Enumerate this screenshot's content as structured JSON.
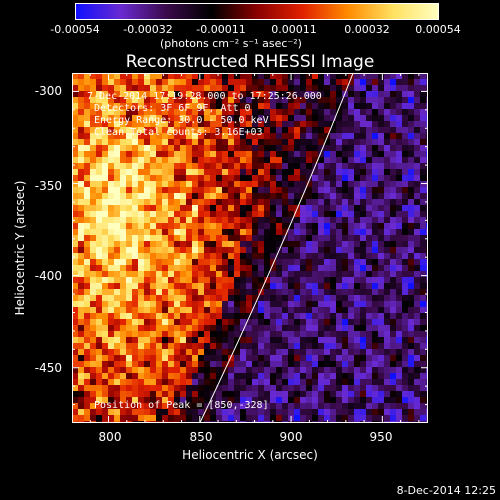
{
  "chart_data": {
    "type": "heatmap",
    "title": "Reconstructed RHESSI Image",
    "xlabel": "Heliocentric X (arcsec)",
    "ylabel": "Heliocentric Y (arcsec)",
    "xlim": [
      780,
      975
    ],
    "ylim": [
      -480,
      -290
    ],
    "x_ticks": [
      "800",
      "850",
      "900",
      "950"
    ],
    "y_ticks": [
      "-300",
      "-350",
      "-400",
      "-450"
    ],
    "colorbar": {
      "ticks": [
        "-0.00054",
        "-0.00032",
        "-0.00011",
        "0.00011",
        "0.00032",
        "0.00054"
      ],
      "units": "(photons cm⁻² s⁻¹ asec⁻²)",
      "range": [
        -0.00054,
        0.00054
      ],
      "colors": [
        "#1010ff",
        "#6a2ad0",
        "#3a0a4a",
        "#000000",
        "#8a0000",
        "#e02000",
        "#ff8a00",
        "#ffe060",
        "#ffffc0"
      ]
    },
    "annotations": {
      "time_range": "7-Dec-2014 17:19:28.000 to 17:25:26.000",
      "detectors": "Detectors: 3F 6F 9F, Att 0",
      "energy": "Energy Range: 30.0 - 50.0 keV",
      "clean": "Clean    Total counts: 3.16E+03",
      "peak": "Position of Peak = [850,-328]"
    },
    "limb_line": {
      "x": [
        850,
        934
      ],
      "y": [
        -480,
        -290
      ]
    },
    "bright_region": {
      "type": "emission",
      "location": "upper-left",
      "peak": [
        850,
        -328
      ]
    }
  },
  "footer": {
    "timestamp": "8-Dec-2014 12:25"
  }
}
